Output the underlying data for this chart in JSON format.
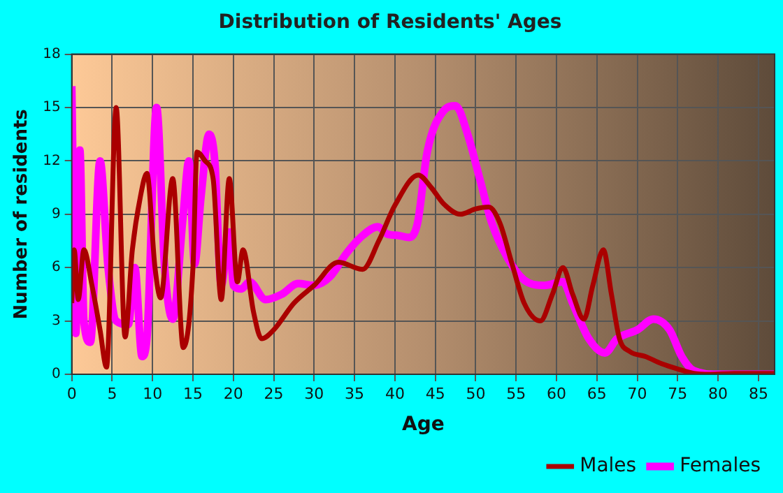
{
  "chart_data": {
    "type": "line",
    "title": "Distribution of Residents' Ages",
    "xlabel": "Age",
    "ylabel": "Number of residents",
    "xlim": [
      0,
      87
    ],
    "xticks": [
      0,
      5,
      10,
      15,
      20,
      25,
      30,
      35,
      40,
      45,
      50,
      55,
      60,
      65,
      70,
      75,
      80,
      85
    ],
    "ylim": [
      0,
      18
    ],
    "yticks": [
      0,
      3,
      6,
      9,
      12,
      15,
      18
    ],
    "grid": true,
    "legend": "bottom right",
    "marker": "none",
    "line_style": "solid",
    "series": [
      {
        "name": "Males",
        "color": "#aa0000",
        "x": [
          0,
          0.3,
          0.8,
          1.5,
          2.5,
          3.5,
          4.3,
          5.5,
          6.6,
          7.5,
          8.5,
          9.3,
          10.3,
          11,
          12.5,
          13.8,
          15,
          15.5,
          16.5,
          17.5,
          18.5,
          19.5,
          20.5,
          21.2,
          22.5,
          23.5,
          25,
          27.5,
          30,
          33,
          36,
          38,
          40,
          42.9,
          44.5,
          46,
          48.1,
          50,
          51.6,
          53,
          54.5,
          56,
          58,
          59.5,
          60.8,
          62,
          63.4,
          64.5,
          65.8,
          66.8,
          67.8,
          69,
          71,
          73,
          75,
          77,
          79,
          82,
          87
        ],
        "values": [
          4,
          7,
          4.2,
          7,
          5,
          2.5,
          0.4,
          15,
          2.1,
          7,
          10,
          11.3,
          6,
          4.3,
          11,
          1.5,
          6,
          12.5,
          12,
          11,
          4.2,
          11,
          5.2,
          7,
          3.5,
          2,
          2.5,
          4,
          5,
          6.3,
          5.9,
          7.5,
          9.5,
          11.2,
          10.5,
          9.6,
          9,
          9.3,
          9.4,
          8.5,
          6.2,
          4,
          3,
          4.5,
          6,
          4.5,
          3.1,
          5,
          7,
          4.5,
          2,
          1.3,
          1,
          0.6,
          0.3,
          0.05,
          0,
          0.05,
          0.05
        ]
      },
      {
        "name": "Females",
        "color": "#ff00ff",
        "x": [
          0,
          0.5,
          1,
          1.5,
          2.3,
          3.5,
          4.5,
          5.5,
          7,
          7.8,
          8.7,
          9.3,
          10.5,
          11.5,
          12.5,
          13.8,
          14.5,
          15.2,
          16,
          17,
          17.7,
          18.5,
          19.5,
          20,
          21,
          22,
          24,
          26,
          28,
          30,
          32,
          34,
          36,
          37.9,
          39,
          40.5,
          41.7,
          42.8,
          44,
          46,
          47.5,
          49,
          50.5,
          52,
          54,
          56,
          58.5,
          60.8,
          62,
          64,
          66,
          67.5,
          70,
          72,
          74,
          75.5,
          77,
          80,
          87
        ],
        "values": [
          16.2,
          2.3,
          12.6,
          3,
          1.8,
          12,
          6,
          3,
          2.8,
          6,
          1,
          2,
          15,
          6,
          3.1,
          9,
          12,
          6.2,
          10,
          13.5,
          12,
          5,
          8,
          5,
          4.8,
          5.2,
          4.2,
          4.5,
          5.1,
          5,
          5.5,
          6.8,
          7.8,
          8.3,
          7.9,
          7.8,
          7.7,
          8.5,
          12.5,
          14.8,
          15.1,
          13.5,
          11,
          8.5,
          6.5,
          5.3,
          5,
          5.2,
          4,
          2,
          1.2,
          2,
          2.5,
          3.1,
          2.5,
          1,
          0.2,
          0,
          0
        ]
      }
    ]
  }
}
